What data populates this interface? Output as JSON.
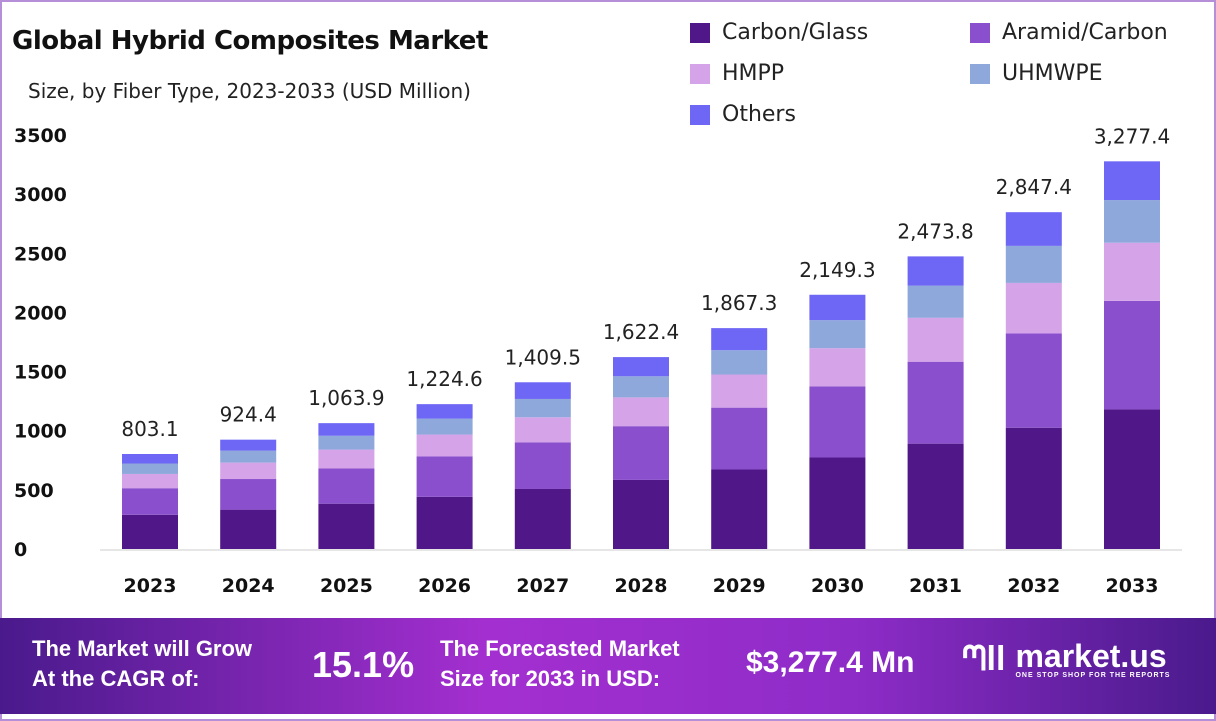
{
  "chart_data": {
    "type": "bar",
    "stacked": true,
    "title": "Global Hybrid Composites Market",
    "subtitle": "Size, by Fiber Type, 2023-2033 (USD Million)",
    "xlabel": "",
    "ylabel": "",
    "ylim": [
      0,
      3500
    ],
    "yticks": [
      "0",
      "500",
      "1000",
      "1500",
      "2000",
      "2500",
      "3000",
      "3500"
    ],
    "grid": false,
    "legend_position": "top-right",
    "categories": [
      "2023",
      "2024",
      "2025",
      "2026",
      "2027",
      "2028",
      "2029",
      "2030",
      "2031",
      "2032",
      "2033"
    ],
    "totals": [
      "803.1",
      "924.4",
      "1,063.9",
      "1,224.6",
      "1,409.5",
      "1,622.4",
      "1,867.3",
      "2,149.3",
      "2,473.8",
      "2,847.4",
      "3,277.4"
    ],
    "series": [
      {
        "name": "Carbon/Glass",
        "color": "#4f1787",
        "values": [
          289.1,
          332.8,
          383.0,
          440.9,
          507.4,
          584.1,
          672.2,
          773.7,
          890.6,
          1025.1,
          1179.9
        ]
      },
      {
        "name": "Aramid/Carbon",
        "color": "#8a4fcc",
        "values": [
          224.9,
          258.8,
          297.9,
          342.9,
          394.7,
          454.3,
          522.8,
          601.8,
          692.7,
          797.3,
          917.7
        ]
      },
      {
        "name": "HMPP",
        "color": "#d4a3e8",
        "values": [
          120.5,
          138.7,
          159.6,
          183.7,
          211.4,
          243.4,
          280.1,
          322.4,
          371.1,
          427.1,
          491.6
        ]
      },
      {
        "name": "UHMWPE",
        "color": "#8fa8db",
        "values": [
          88.3,
          101.7,
          117.0,
          134.7,
          155.0,
          178.5,
          205.4,
          236.4,
          272.1,
          313.2,
          360.5
        ]
      },
      {
        "name": "Others",
        "color": "#6e66f5",
        "values": [
          80.3,
          92.4,
          106.4,
          122.4,
          141.0,
          162.1,
          186.8,
          215.0,
          247.3,
          284.7,
          327.7
        ]
      }
    ]
  },
  "footer": {
    "cagr_label_1": "The Market will Grow",
    "cagr_label_2": "At the CAGR of:",
    "cagr_value": "15.1%",
    "forecast_label_1": "The Forecasted Market",
    "forecast_label_2": "Size for 2033 in USD:",
    "forecast_value": "$3,277.4 Mn",
    "logo_name": "market.us",
    "logo_tagline": "ONE STOP SHOP FOR THE REPORTS"
  }
}
